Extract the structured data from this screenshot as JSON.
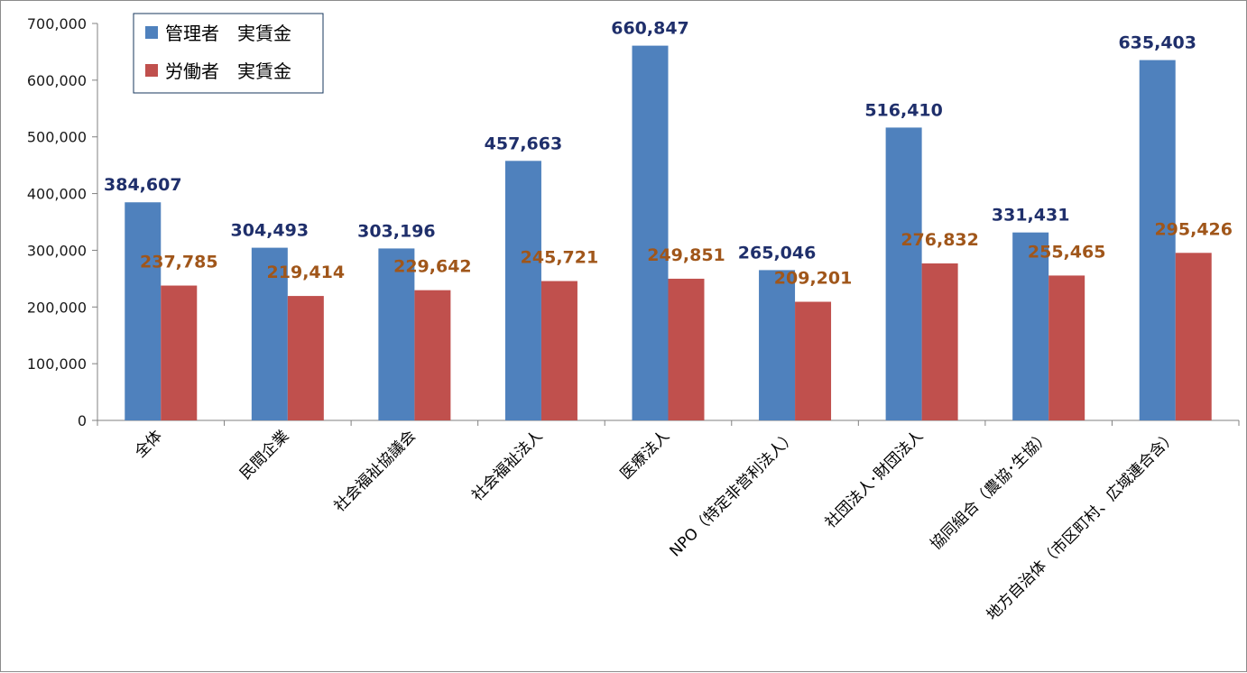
{
  "chart_data": {
    "type": "bar",
    "title": "",
    "xlabel": "",
    "ylabel": "",
    "ylim": [
      0,
      700000
    ],
    "yticks": [
      0,
      100000,
      200000,
      300000,
      400000,
      500000,
      600000,
      700000
    ],
    "ytick_labels": [
      "0",
      "100,000",
      "200,000",
      "300,000",
      "400,000",
      "500,000",
      "600,000",
      "700,000"
    ],
    "grid": false,
    "legend_position": "top-left",
    "categories": [
      "全体",
      "民間企業",
      "社会福祉協議会",
      "社会福祉法人",
      "医療法人",
      "NPO（特定非営利法人）",
      "社団法人･財団法人",
      "協同組合（農協･生協）",
      "地方自治体（市区町村、広域連合含）"
    ],
    "series": [
      {
        "name": "管理者　実賃金",
        "color": "#4f81bd",
        "label_color": "#1f2f6b",
        "values": [
          384607,
          304493,
          303196,
          457663,
          660847,
          265046,
          516410,
          331431,
          635403
        ],
        "labels": [
          "384,607",
          "304,493",
          "303,196",
          "457,663",
          "660,847",
          "265,046",
          "516,410",
          "331,431",
          "635,403"
        ]
      },
      {
        "name": "労働者　実賃金",
        "color": "#c0504d",
        "label_color": "#a0561a",
        "values": [
          237785,
          219414,
          229642,
          245721,
          249851,
          209201,
          276832,
          255465,
          295426
        ],
        "labels": [
          "237,785",
          "219,414",
          "229,642",
          "245,721",
          "249,851",
          "209,201",
          "276,832",
          "255,465",
          "295,426"
        ]
      }
    ]
  }
}
